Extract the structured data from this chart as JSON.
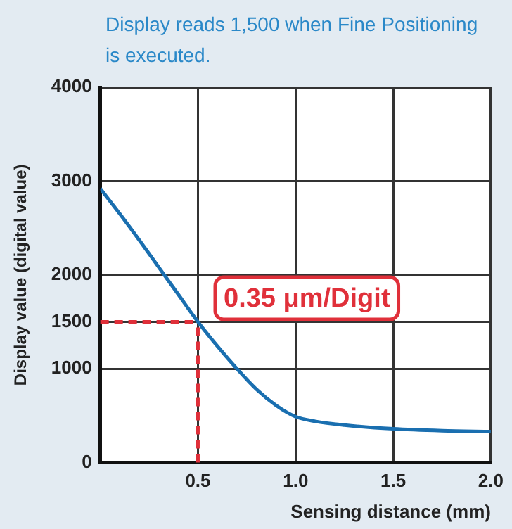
{
  "chart_data": {
    "type": "line",
    "xlabel": "Sensing distance (mm)",
    "ylabel": "Display value (digital value)",
    "x": [
      0,
      0.1,
      0.2,
      0.3,
      0.4,
      0.5,
      0.6,
      0.7,
      0.8,
      0.9,
      1.0,
      1.1,
      1.25,
      1.5,
      1.75,
      2.0
    ],
    "series": [
      {
        "color": "#1a6fb0",
        "values": [
          2920,
          2650,
          2370,
          2080,
          1790,
          1500,
          1240,
          1000,
          780,
          610,
          490,
          440,
          400,
          360,
          340,
          330
        ]
      }
    ],
    "xlim": [
      0,
      2
    ],
    "xticks": [
      {
        "value": 0,
        "label": null
      },
      0.5,
      {
        "value": 1,
        "label": "1.0"
      },
      1.5,
      {
        "value": 2,
        "label": "2.0"
      }
    ],
    "ylim": [
      0,
      4000
    ],
    "yticks": [
      0,
      1000,
      1500,
      2000,
      3000,
      4000
    ],
    "grid": true,
    "legend": false,
    "marker": "none",
    "line_style": "solid",
    "ref_lines": [
      {
        "axis": "x",
        "value": 0.5,
        "color": "#e0303a",
        "line_style": "dashed"
      },
      {
        "axis": "y",
        "value": 1500,
        "color": "#e0303a",
        "line_style": "dashed"
      }
    ],
    "annotations": [
      "Display reads 1,500 when Fine Positioning is executed.",
      "0.35 μm/Digit"
    ]
  }
}
